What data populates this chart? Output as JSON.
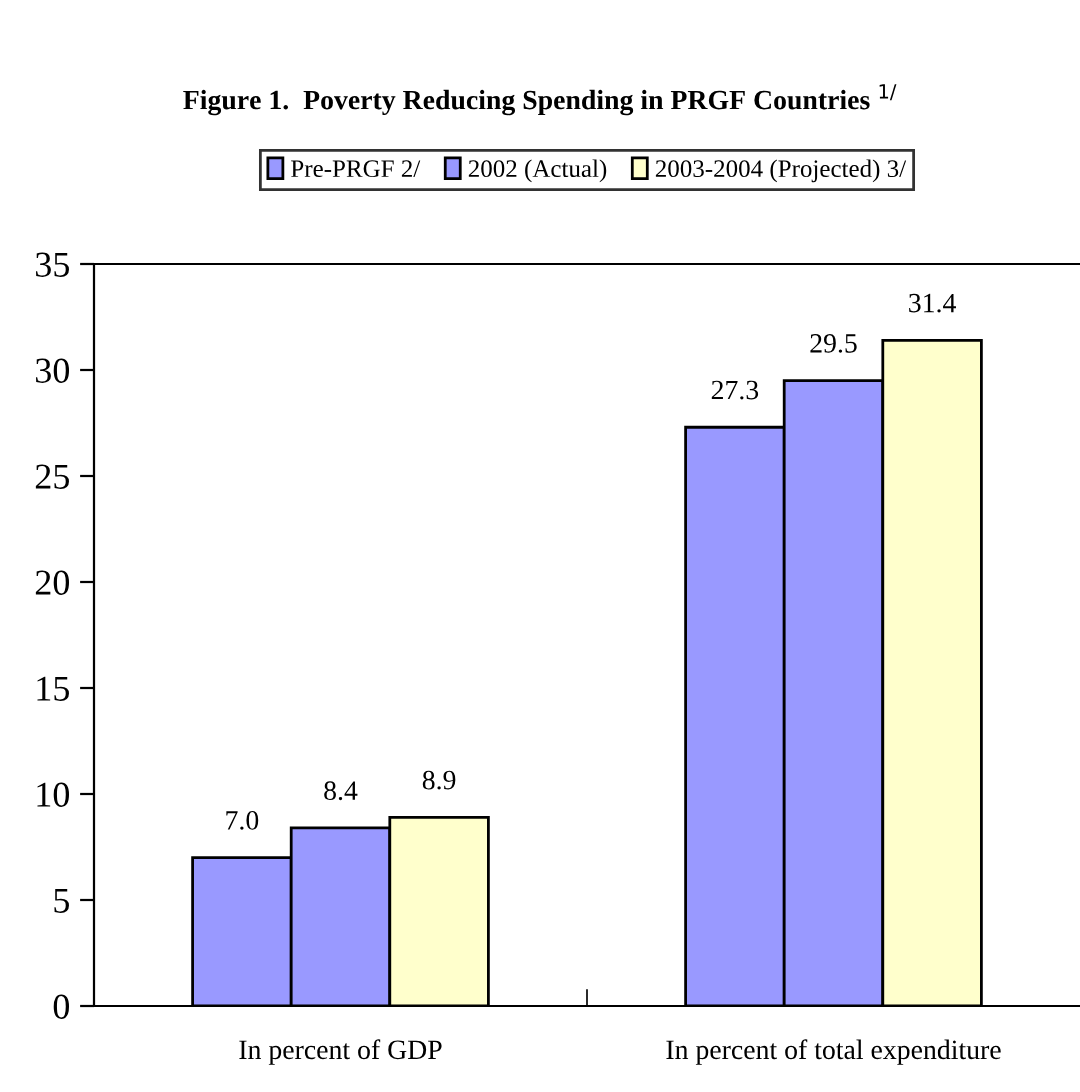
{
  "chart_data": {
    "type": "bar",
    "title": "Figure 1.  Poverty Reducing Spending in PRGF Countries $^{1/}$",
    "categories": [
      "In percent of GDP",
      "In percent of total expenditure"
    ],
    "series": [
      {
        "name": "Pre-PRGF 2/",
        "color": "#9999ff",
        "values": [
          7.0,
          27.3
        ],
        "value_labels": [
          "7.0",
          "27.3"
        ]
      },
      {
        "name": "2002 (Actual)",
        "color": "#9999ff",
        "values": [
          8.4,
          29.5
        ],
        "value_labels": [
          "8.4",
          "29.5"
        ]
      },
      {
        "name": "2003-2004 (Projected) 3/",
        "color": "#ffffcc",
        "values": [
          8.9,
          31.4
        ],
        "value_labels": [
          "8.9",
          "31.4"
        ]
      }
    ],
    "ylim": [
      0,
      35
    ],
    "yticks": [
      0,
      5,
      10,
      15,
      20,
      25,
      30,
      35
    ],
    "grid": false,
    "legend": "top"
  }
}
